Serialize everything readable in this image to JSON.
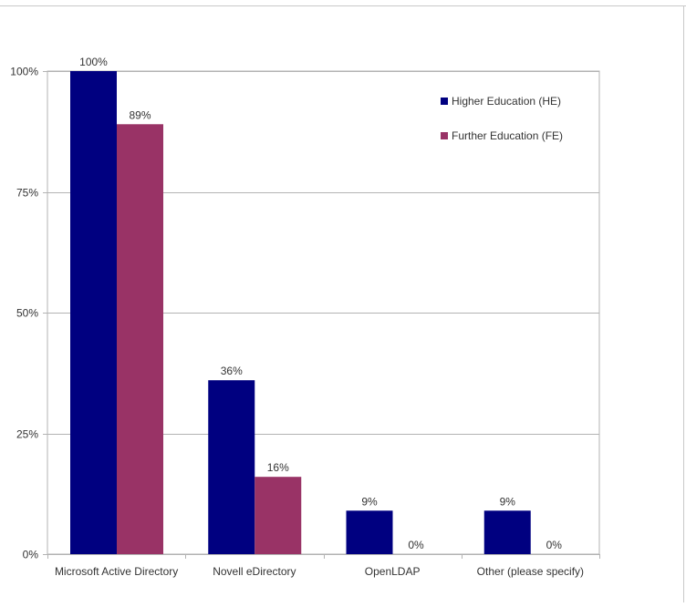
{
  "chart_data": {
    "type": "bar",
    "categories": [
      "Microsoft Active Directory",
      "Novell eDirectory",
      "OpenLDAP",
      "Other (please specify)"
    ],
    "series": [
      {
        "name": "Higher Education (HE)",
        "values": [
          100,
          36,
          9,
          9
        ],
        "labels": [
          "100%",
          "36%",
          "9%",
          "9%"
        ],
        "color": "#000080"
      },
      {
        "name": "Further Education (FE)",
        "values": [
          89,
          16,
          0,
          0
        ],
        "labels": [
          "89%",
          "16%",
          "0%",
          "0%"
        ],
        "color": "#993366"
      }
    ],
    "y_ticks": [
      0,
      25,
      50,
      75,
      100
    ],
    "y_tick_labels": [
      "0%",
      "25%",
      "50%",
      "75%",
      "100%"
    ],
    "ylim": [
      0,
      100
    ],
    "grid": true,
    "legend_position": "top-right",
    "title": "",
    "xlabel": "",
    "ylabel": ""
  }
}
